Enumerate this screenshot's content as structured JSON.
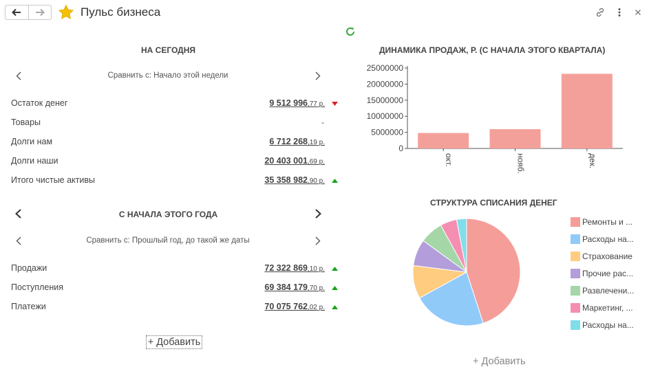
{
  "header": {
    "title": "Пульс бизнеса",
    "favorite_color": "#f5c000"
  },
  "today": {
    "title": "НА СЕГОДНЯ",
    "compare_label": "Сравнить с: Начало этой недели",
    "rows": [
      {
        "label": "Остаток денег",
        "value_main": "9 512 996",
        "value_sub": ",77 р.",
        "trend": "down"
      },
      {
        "label": "Товары",
        "value_dash": "-"
      },
      {
        "label": "Долги нам",
        "value_main": "6 712 268",
        "value_sub": ",19 р."
      },
      {
        "label": "Долги наши",
        "value_main": "20 403 001",
        "value_sub": ",69 р."
      },
      {
        "label": "Итого чистые активы",
        "value_main": "35 358 982",
        "value_sub": ",90 р.",
        "trend": "up"
      }
    ]
  },
  "year": {
    "title": "С НАЧАЛА ЭТОГО ГОДА",
    "compare_label": "Сравнить с: Прошлый год, до такой же даты",
    "rows": [
      {
        "label": "Продажи",
        "value_main": "72 322 869",
        "value_sub": ",10 р.",
        "trend": "up"
      },
      {
        "label": "Поступления",
        "value_main": "69 384 179",
        "value_sub": ",70 р.",
        "trend": "up"
      },
      {
        "label": "Платежи",
        "value_main": "70 075 762",
        "value_sub": ",02 р.",
        "trend": "up"
      }
    ]
  },
  "add_label": "+ Добавить",
  "colors": {
    "trend_up": "#1aa31a",
    "trend_down": "#e02020",
    "refresh": "#3aa63a"
  },
  "chart_data": [
    {
      "type": "bar",
      "title": "ДИНАМИКА ПРОДАЖ, Р. (С НАЧАЛА ЭТОГО КВАРТАЛА)",
      "categories": [
        "окт.",
        "нояб.",
        "дек."
      ],
      "values": [
        4800000,
        6000000,
        23200000
      ],
      "ylim": [
        0,
        25000000
      ],
      "yticks": [
        "0",
        "5000000",
        "10000000",
        "15000000",
        "20000000",
        "25000000"
      ],
      "color": "#f4a09a",
      "grid": false
    },
    {
      "type": "pie",
      "title": "СТРУКТУРА СПИСАНИЯ ДЕНЕГ",
      "legend_position": "right",
      "slices": [
        {
          "label": "Ремонты и ...",
          "value": 45,
          "color": "#f59d98"
        },
        {
          "label": "Расходы на...",
          "value": 22,
          "color": "#90caf9"
        },
        {
          "label": "Страхование",
          "value": 10,
          "color": "#ffcc80"
        },
        {
          "label": "Прочие рас...",
          "value": 8,
          "color": "#b39ddb"
        },
        {
          "label": "Развлечени...",
          "value": 7,
          "color": "#a5d6a7"
        },
        {
          "label": "Маркетинг, ...",
          "value": 5,
          "color": "#f48fb1"
        },
        {
          "label": "Расходы на...",
          "value": 3,
          "color": "#80deea"
        }
      ]
    }
  ]
}
